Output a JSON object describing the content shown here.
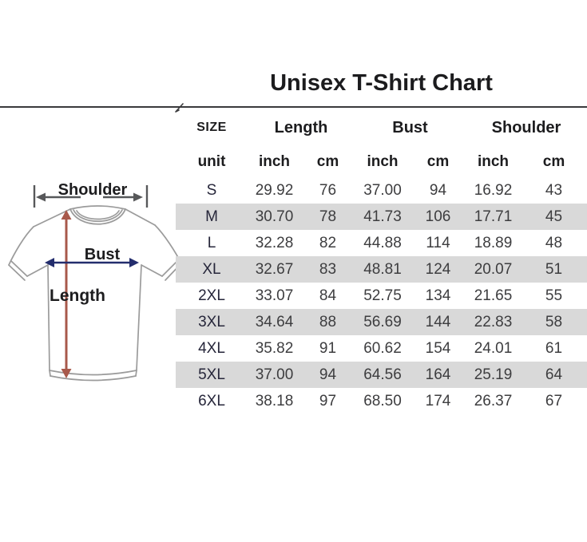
{
  "title": "Unisex T-Shirt Chart",
  "diagram": {
    "shoulder_label": "Shoulder",
    "bust_label": "Bust",
    "length_label": "Length",
    "colors": {
      "shoulder_arrow": "#57585a",
      "bust_arrow": "#232d6d",
      "length_arrow": "#a8594b",
      "shirt_outline": "#9b9b9b"
    }
  },
  "table": {
    "size_header": "SIZE",
    "group_headers": [
      "Length",
      "Bust",
      "Shoulder"
    ],
    "unit_row": [
      "unit",
      "inch",
      "cm",
      "inch",
      "cm",
      "inch",
      "cm"
    ],
    "row_shade_color": "#d9d9d9",
    "rows": [
      {
        "size": "S",
        "shaded": false,
        "values": [
          "29.92",
          "76",
          "37.00",
          "94",
          "16.92",
          "43"
        ]
      },
      {
        "size": "M",
        "shaded": true,
        "values": [
          "30.70",
          "78",
          "41.73",
          "106",
          "17.71",
          "45"
        ]
      },
      {
        "size": "L",
        "shaded": false,
        "values": [
          "32.28",
          "82",
          "44.88",
          "114",
          "18.89",
          "48"
        ]
      },
      {
        "size": "XL",
        "shaded": true,
        "values": [
          "32.67",
          "83",
          "48.81",
          "124",
          "20.07",
          "51"
        ]
      },
      {
        "size": "2XL",
        "shaded": false,
        "values": [
          "33.07",
          "84",
          "52.75",
          "134",
          "21.65",
          "55"
        ]
      },
      {
        "size": "3XL",
        "shaded": true,
        "values": [
          "34.64",
          "88",
          "56.69",
          "144",
          "22.83",
          "58"
        ]
      },
      {
        "size": "4XL",
        "shaded": false,
        "values": [
          "35.82",
          "91",
          "60.62",
          "154",
          "24.01",
          "61"
        ]
      },
      {
        "size": "5XL",
        "shaded": true,
        "values": [
          "37.00",
          "94",
          "64.56",
          "164",
          "25.19",
          "64"
        ]
      },
      {
        "size": "6XL",
        "shaded": false,
        "values": [
          "38.18",
          "97",
          "68.50",
          "174",
          "26.37",
          "67"
        ]
      }
    ]
  },
  "chart_data": {
    "type": "table",
    "title": "Unisex T-Shirt Chart",
    "columns": [
      "SIZE",
      "Length inch",
      "Length cm",
      "Bust inch",
      "Bust cm",
      "Shoulder inch",
      "Shoulder cm"
    ],
    "rows": [
      [
        "S",
        29.92,
        76,
        37.0,
        94,
        16.92,
        43
      ],
      [
        "M",
        30.7,
        78,
        41.73,
        106,
        17.71,
        45
      ],
      [
        "L",
        32.28,
        82,
        44.88,
        114,
        18.89,
        48
      ],
      [
        "XL",
        32.67,
        83,
        48.81,
        124,
        20.07,
        51
      ],
      [
        "2XL",
        33.07,
        84,
        52.75,
        134,
        21.65,
        55
      ],
      [
        "3XL",
        34.64,
        88,
        56.69,
        144,
        22.83,
        58
      ],
      [
        "4XL",
        35.82,
        91,
        60.62,
        154,
        24.01,
        61
      ],
      [
        "5XL",
        37.0,
        94,
        64.56,
        164,
        25.19,
        64
      ],
      [
        "6XL",
        38.18,
        97,
        68.5,
        174,
        26.37,
        67
      ]
    ]
  }
}
